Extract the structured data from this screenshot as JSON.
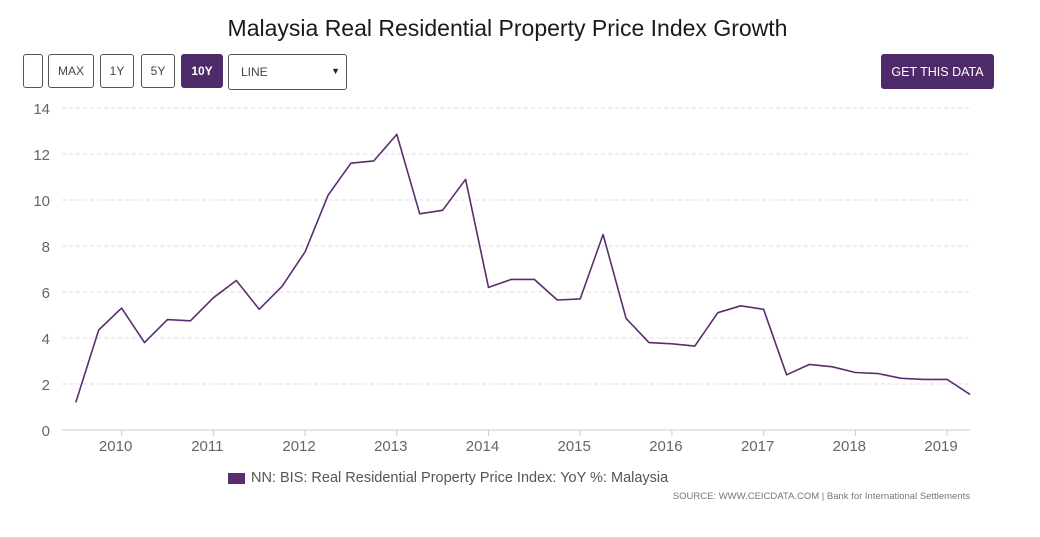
{
  "header": {
    "title": "Malaysia Real Residential Property Price Index Growth"
  },
  "toolbar": {
    "blank_label": "",
    "buttons": [
      {
        "label": "MAX",
        "active": false
      },
      {
        "label": "1Y",
        "active": false
      },
      {
        "label": "5Y",
        "active": false
      },
      {
        "label": "10Y",
        "active": true
      }
    ],
    "chart_type_select": {
      "value": "LINE"
    },
    "cta_label": "GET THIS DATA"
  },
  "colors": {
    "accent": "#4e2a68",
    "line": "#5c2d6e",
    "grid": "#e6d9ea"
  },
  "chart_data": {
    "type": "line",
    "title": "Malaysia Real Residential Property Price Index Growth",
    "xlabel": "",
    "ylabel": "",
    "ylim": [
      0,
      14
    ],
    "yticks": [
      "0",
      "2",
      "4",
      "6",
      "8",
      "10",
      "12",
      "14"
    ],
    "xticks": [
      {
        "label": "2010",
        "x": 2010.0
      },
      {
        "label": "2011",
        "x": 2011.0
      },
      {
        "label": "2012",
        "x": 2012.0
      },
      {
        "label": "2013",
        "x": 2013.0
      },
      {
        "label": "2014",
        "x": 2014.0
      },
      {
        "label": "2015",
        "x": 2015.0
      },
      {
        "label": "2016",
        "x": 2016.0
      },
      {
        "label": "2017",
        "x": 2017.0
      },
      {
        "label": "2018",
        "x": 2018.0
      },
      {
        "label": "2019",
        "x": 2019.0
      }
    ],
    "xlim": [
      2009.35,
      2019.25
    ],
    "grid": true,
    "legend_position": "bottom",
    "series": [
      {
        "name": "NN: BIS: Real Residential Property Price Index: YoY %: Malaysia",
        "x": [
          2009.5,
          2009.75,
          2010.0,
          2010.25,
          2010.5,
          2010.75,
          2011.0,
          2011.25,
          2011.5,
          2011.75,
          2012.0,
          2012.25,
          2012.5,
          2012.75,
          2013.0,
          2013.25,
          2013.5,
          2013.75,
          2014.0,
          2014.25,
          2014.5,
          2014.75,
          2015.0,
          2015.25,
          2015.5,
          2015.75,
          2016.0,
          2016.25,
          2016.5,
          2016.75,
          2017.0,
          2017.25,
          2017.5,
          2017.75,
          2018.0,
          2018.25,
          2018.5,
          2018.75,
          2019.0,
          2019.25
        ],
        "values": [
          1.2,
          4.35,
          5.3,
          3.8,
          4.8,
          4.75,
          5.75,
          6.5,
          5.25,
          6.25,
          7.75,
          10.2,
          11.6,
          11.7,
          12.85,
          9.4,
          9.55,
          10.9,
          6.2,
          6.55,
          6.55,
          5.65,
          5.7,
          8.5,
          4.85,
          3.8,
          3.75,
          3.65,
          5.1,
          5.4,
          5.25,
          2.4,
          2.85,
          2.75,
          2.5,
          2.45,
          2.25,
          2.2,
          2.2,
          1.55
        ]
      }
    ]
  },
  "legend": {
    "label": "NN: BIS: Real Residential Property Price Index: YoY %: Malaysia"
  },
  "source": {
    "text": "SOURCE: WWW.CEICDATA.COM | Bank for International Settlements"
  }
}
